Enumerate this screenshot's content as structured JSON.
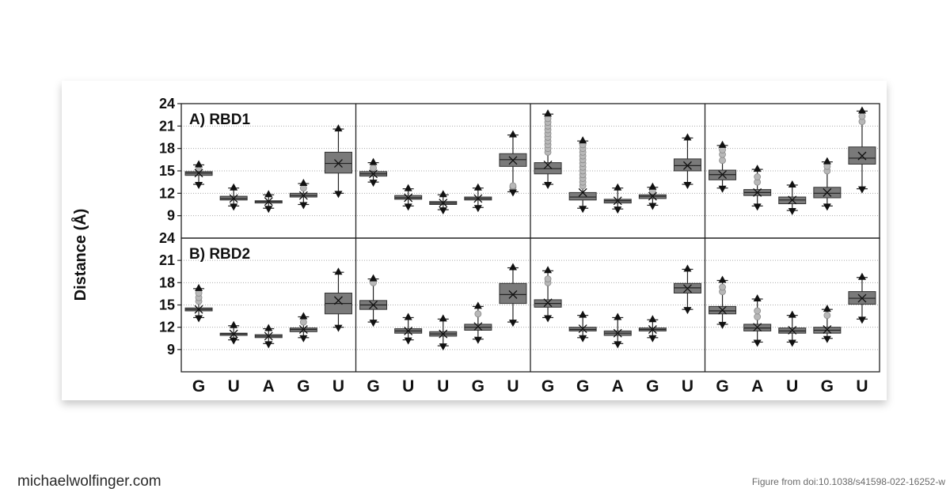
{
  "footer": {
    "site": "michaelwolfinger.com",
    "credit": "Figure from doi:10.1038/s41598-022-16252-w"
  },
  "chart_data": {
    "type": "box",
    "ylabel": "Distance (Å)",
    "y_ticks": [
      9,
      12,
      15,
      18,
      21,
      24
    ],
    "ylim": [
      6,
      24
    ],
    "grid": "dotted horizontal",
    "rows": [
      {
        "label": "A) RBD1"
      },
      {
        "label": "B) RBD2"
      }
    ],
    "groups": [
      {
        "categories": [
          "G",
          "U",
          "A",
          "G",
          "U"
        ]
      },
      {
        "categories": [
          "G",
          "U",
          "U",
          "G",
          "U"
        ]
      },
      {
        "categories": [
          "G",
          "G",
          "A",
          "G",
          "U"
        ]
      },
      {
        "categories": [
          "G",
          "A",
          "U",
          "G",
          "U"
        ]
      }
    ],
    "boxes": [
      [
        [
          {
            "min": 13.2,
            "q1": 14.4,
            "median": 14.7,
            "q3": 14.9,
            "max": 15.8,
            "mean": 14.7,
            "outliers": [
              15.1
            ]
          },
          {
            "min": 10.3,
            "q1": 11.1,
            "median": 11.3,
            "q3": 11.6,
            "max": 12.7,
            "mean": 11.3,
            "outliers": []
          },
          {
            "min": 10.0,
            "q1": 10.7,
            "median": 10.9,
            "q3": 11.0,
            "max": 11.8,
            "mean": 10.9,
            "outliers": []
          },
          {
            "min": 10.5,
            "q1": 11.5,
            "median": 11.7,
            "q3": 12.0,
            "max": 13.3,
            "mean": 11.7,
            "outliers": [
              12.7
            ]
          },
          {
            "min": 12.0,
            "q1": 14.7,
            "median": 16.0,
            "q3": 17.5,
            "max": 20.6,
            "mean": 16.0,
            "outliers": []
          }
        ],
        [
          {
            "min": 13.5,
            "q1": 14.3,
            "median": 14.6,
            "q3": 14.9,
            "max": 16.1,
            "mean": 14.6,
            "outliers": [
              15.4
            ]
          },
          {
            "min": 10.3,
            "q1": 11.2,
            "median": 11.4,
            "q3": 11.7,
            "max": 12.6,
            "mean": 11.4,
            "outliers": []
          },
          {
            "min": 9.8,
            "q1": 10.5,
            "median": 10.7,
            "q3": 10.9,
            "max": 11.8,
            "mean": 10.7,
            "outliers": []
          },
          {
            "min": 10.1,
            "q1": 11.1,
            "median": 11.3,
            "q3": 11.5,
            "max": 12.7,
            "mean": 11.3,
            "outliers": []
          },
          {
            "min": 12.2,
            "q1": 15.6,
            "median": 16.5,
            "q3": 17.3,
            "max": 19.8,
            "mean": 16.4,
            "outliers": [
              12.8,
              13.0
            ]
          }
        ],
        [
          {
            "min": 13.2,
            "q1": 14.6,
            "median": 15.3,
            "q3": 16.1,
            "max": 22.6,
            "mean": 15.8,
            "outliers": [
              17.5,
              18.0,
              18.5,
              19.0,
              19.5,
              20.0,
              20.5,
              21.0,
              21.5,
              22.0
            ]
          },
          {
            "min": 10.0,
            "q1": 11.1,
            "median": 11.5,
            "q3": 12.1,
            "max": 19.0,
            "mean": 12.1,
            "outliers": [
              13.0,
              13.5,
              14.0,
              14.5,
              15.0,
              15.5,
              16.0,
              16.5,
              17.0,
              17.5,
              18.0,
              18.5
            ]
          },
          {
            "min": 9.9,
            "q1": 10.7,
            "median": 11.0,
            "q3": 11.2,
            "max": 12.7,
            "mean": 11.0,
            "outliers": []
          },
          {
            "min": 10.4,
            "q1": 11.3,
            "median": 11.6,
            "q3": 11.8,
            "max": 12.8,
            "mean": 11.6,
            "outliers": [
              12.3
            ]
          },
          {
            "min": 13.2,
            "q1": 15.0,
            "median": 15.7,
            "q3": 16.6,
            "max": 19.4,
            "mean": 15.7,
            "outliers": []
          }
        ],
        [
          {
            "min": 12.7,
            "q1": 13.8,
            "median": 14.5,
            "q3": 15.1,
            "max": 18.4,
            "mean": 14.5,
            "outliers": [
              16.4,
              17.2,
              17.8
            ]
          },
          {
            "min": 10.3,
            "q1": 11.7,
            "median": 12.1,
            "q3": 12.5,
            "max": 15.2,
            "mean": 12.1,
            "outliers": [
              13.5,
              14.2
            ]
          },
          {
            "min": 9.7,
            "q1": 10.6,
            "median": 11.1,
            "q3": 11.5,
            "max": 13.1,
            "mean": 11.1,
            "outliers": []
          },
          {
            "min": 10.3,
            "q1": 11.4,
            "median": 12.0,
            "q3": 12.8,
            "max": 16.2,
            "mean": 12.1,
            "outliers": [
              15.0,
              15.6
            ]
          },
          {
            "min": 12.6,
            "q1": 15.9,
            "median": 16.7,
            "q3": 18.2,
            "max": 23.0,
            "mean": 17.0,
            "outliers": [
              21.6,
              22.3
            ]
          }
        ]
      ],
      [
        [
          {
            "min": 13.3,
            "q1": 14.2,
            "median": 14.4,
            "q3": 14.6,
            "max": 17.2,
            "mean": 14.4,
            "outliers": [
              15.5,
              16.0,
              16.6
            ]
          },
          {
            "min": 10.3,
            "q1": 10.9,
            "median": 11.1,
            "q3": 11.2,
            "max": 12.2,
            "mean": 11.1,
            "outliers": []
          },
          {
            "min": 9.8,
            "q1": 10.6,
            "median": 10.8,
            "q3": 11.0,
            "max": 11.8,
            "mean": 10.8,
            "outliers": []
          },
          {
            "min": 10.6,
            "q1": 11.4,
            "median": 11.7,
            "q3": 11.9,
            "max": 13.4,
            "mean": 11.7,
            "outliers": [
              12.7
            ]
          },
          {
            "min": 12.0,
            "q1": 13.8,
            "median": 15.2,
            "q3": 16.6,
            "max": 19.4,
            "mean": 15.6,
            "outliers": []
          }
        ],
        [
          {
            "min": 12.7,
            "q1": 14.4,
            "median": 15.0,
            "q3": 15.6,
            "max": 18.5,
            "mean": 15.0,
            "outliers": [
              18.0
            ]
          },
          {
            "min": 10.3,
            "q1": 11.2,
            "median": 11.5,
            "q3": 11.8,
            "max": 13.3,
            "mean": 11.5,
            "outliers": []
          },
          {
            "min": 9.5,
            "q1": 10.8,
            "median": 11.1,
            "q3": 11.4,
            "max": 13.1,
            "mean": 11.1,
            "outliers": []
          },
          {
            "min": 10.4,
            "q1": 11.6,
            "median": 12.0,
            "q3": 12.4,
            "max": 14.8,
            "mean": 12.1,
            "outliers": [
              13.8
            ]
          },
          {
            "min": 12.7,
            "q1": 15.2,
            "median": 16.4,
            "q3": 17.9,
            "max": 20.0,
            "mean": 16.4,
            "outliers": []
          }
        ],
        [
          {
            "min": 13.3,
            "q1": 14.7,
            "median": 15.2,
            "q3": 15.7,
            "max": 19.6,
            "mean": 15.3,
            "outliers": [
              18.0,
              18.5
            ]
          },
          {
            "min": 10.6,
            "q1": 11.5,
            "median": 11.7,
            "q3": 12.0,
            "max": 13.6,
            "mean": 11.8,
            "outliers": []
          },
          {
            "min": 9.8,
            "q1": 10.9,
            "median": 11.2,
            "q3": 11.5,
            "max": 13.3,
            "mean": 11.2,
            "outliers": []
          },
          {
            "min": 10.6,
            "q1": 11.5,
            "median": 11.7,
            "q3": 11.9,
            "max": 13.0,
            "mean": 11.7,
            "outliers": []
          },
          {
            "min": 14.4,
            "q1": 16.6,
            "median": 17.3,
            "q3": 17.9,
            "max": 19.8,
            "mean": 17.2,
            "outliers": []
          }
        ],
        [
          {
            "min": 12.4,
            "q1": 13.8,
            "median": 14.2,
            "q3": 14.8,
            "max": 18.3,
            "mean": 14.3,
            "outliers": [
              16.8,
              17.4
            ]
          },
          {
            "min": 10.0,
            "q1": 11.5,
            "median": 11.9,
            "q3": 12.4,
            "max": 15.8,
            "mean": 12.0,
            "outliers": [
              13.4,
              14.2
            ]
          },
          {
            "min": 10.0,
            "q1": 11.2,
            "median": 11.5,
            "q3": 11.9,
            "max": 13.6,
            "mean": 11.6,
            "outliers": []
          },
          {
            "min": 10.5,
            "q1": 11.2,
            "median": 11.6,
            "q3": 12.0,
            "max": 14.4,
            "mean": 11.7,
            "outliers": [
              13.6
            ]
          },
          {
            "min": 13.1,
            "q1": 15.1,
            "median": 15.9,
            "q3": 16.8,
            "max": 18.7,
            "mean": 15.9,
            "outliers": []
          }
        ]
      ]
    ]
  }
}
